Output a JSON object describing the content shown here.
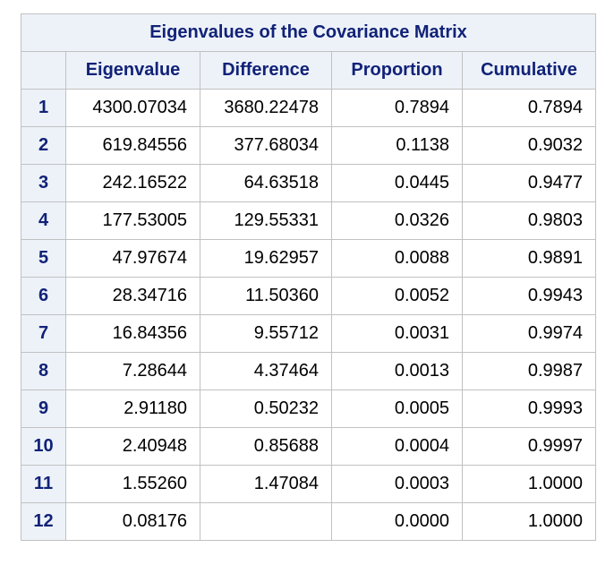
{
  "table": {
    "title": "Eigenvalues of the Covariance Matrix",
    "columns": [
      "Eigenvalue",
      "Difference",
      "Proportion",
      "Cumulative"
    ],
    "rows": [
      {
        "n": "1",
        "eigenvalue": "4300.07034",
        "difference": "3680.22478",
        "proportion": "0.7894",
        "cumulative": "0.7894"
      },
      {
        "n": "2",
        "eigenvalue": "619.84556",
        "difference": "377.68034",
        "proportion": "0.1138",
        "cumulative": "0.9032"
      },
      {
        "n": "3",
        "eigenvalue": "242.16522",
        "difference": "64.63518",
        "proportion": "0.0445",
        "cumulative": "0.9477"
      },
      {
        "n": "4",
        "eigenvalue": "177.53005",
        "difference": "129.55331",
        "proportion": "0.0326",
        "cumulative": "0.9803"
      },
      {
        "n": "5",
        "eigenvalue": "47.97674",
        "difference": "19.62957",
        "proportion": "0.0088",
        "cumulative": "0.9891"
      },
      {
        "n": "6",
        "eigenvalue": "28.34716",
        "difference": "11.50360",
        "proportion": "0.0052",
        "cumulative": "0.9943"
      },
      {
        "n": "7",
        "eigenvalue": "16.84356",
        "difference": "9.55712",
        "proportion": "0.0031",
        "cumulative": "0.9974"
      },
      {
        "n": "8",
        "eigenvalue": "7.28644",
        "difference": "4.37464",
        "proportion": "0.0013",
        "cumulative": "0.9987"
      },
      {
        "n": "9",
        "eigenvalue": "2.91180",
        "difference": "0.50232",
        "proportion": "0.0005",
        "cumulative": "0.9993"
      },
      {
        "n": "10",
        "eigenvalue": "2.40948",
        "difference": "0.85688",
        "proportion": "0.0004",
        "cumulative": "0.9997"
      },
      {
        "n": "11",
        "eigenvalue": "1.55260",
        "difference": "1.47084",
        "proportion": "0.0003",
        "cumulative": "1.0000"
      },
      {
        "n": "12",
        "eigenvalue": "0.08176",
        "difference": "",
        "proportion": "0.0000",
        "cumulative": "1.0000"
      }
    ]
  },
  "colors": {
    "header_background": "#edf2f9",
    "header_text": "#112277",
    "border": "#c1c1c1",
    "cell_background": "#ffffff"
  }
}
